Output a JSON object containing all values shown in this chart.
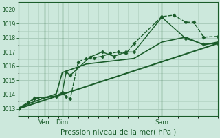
{
  "background_color": "#cce8dc",
  "grid_color": "#aaccbb",
  "line_color": "#1a5c2a",
  "title": "Pression niveau de la mer( hPa )",
  "ylim": [
    1012.5,
    1020.5
  ],
  "yticks": [
    1013,
    1014,
    1015,
    1016,
    1017,
    1018,
    1019,
    1020
  ],
  "xlim": [
    0,
    100
  ],
  "vlines_x": [
    13,
    22,
    72
  ],
  "vlines_labels": [
    "Ven",
    "Dim",
    "Sam"
  ],
  "series": [
    {
      "x": [
        0,
        5,
        8,
        19,
        22,
        24,
        26,
        30,
        34,
        38,
        42,
        46,
        50,
        54,
        58,
        72,
        78,
        84,
        88,
        93,
        100
      ],
      "y": [
        1013.0,
        1013.4,
        1013.7,
        1013.85,
        1014.1,
        1013.85,
        1013.7,
        1016.3,
        1016.55,
        1016.6,
        1016.7,
        1016.9,
        1017.0,
        1016.9,
        1017.6,
        1019.5,
        1019.6,
        1019.1,
        1019.1,
        1018.05,
        1018.1
      ],
      "marker": "D",
      "linestyle": "--",
      "linewidth": 1.0,
      "markersize": 2.5
    },
    {
      "x": [
        0,
        5,
        8,
        19,
        22,
        24,
        26,
        36,
        42,
        48,
        54,
        58,
        72,
        84,
        93,
        100
      ],
      "y": [
        1013.05,
        1013.45,
        1013.75,
        1013.9,
        1014.15,
        1015.6,
        1015.35,
        1016.65,
        1017.0,
        1016.7,
        1017.0,
        1017.0,
        1019.45,
        1017.95,
        1017.55,
        1017.6
      ],
      "marker": "D",
      "linestyle": "-",
      "linewidth": 1.0,
      "markersize": 2.5
    },
    {
      "x": [
        0,
        5,
        19,
        22,
        34,
        58,
        72,
        84,
        93,
        100
      ],
      "y": [
        1013.0,
        1013.35,
        1014.05,
        1015.55,
        1016.15,
        1016.55,
        1017.7,
        1018.05,
        1017.5,
        1017.7
      ],
      "marker": null,
      "linestyle": "-",
      "linewidth": 1.2,
      "markersize": 0
    },
    {
      "x": [
        0,
        100
      ],
      "y": [
        1013.0,
        1017.6
      ],
      "marker": null,
      "linestyle": "-",
      "linewidth": 1.5,
      "markersize": 0
    }
  ]
}
